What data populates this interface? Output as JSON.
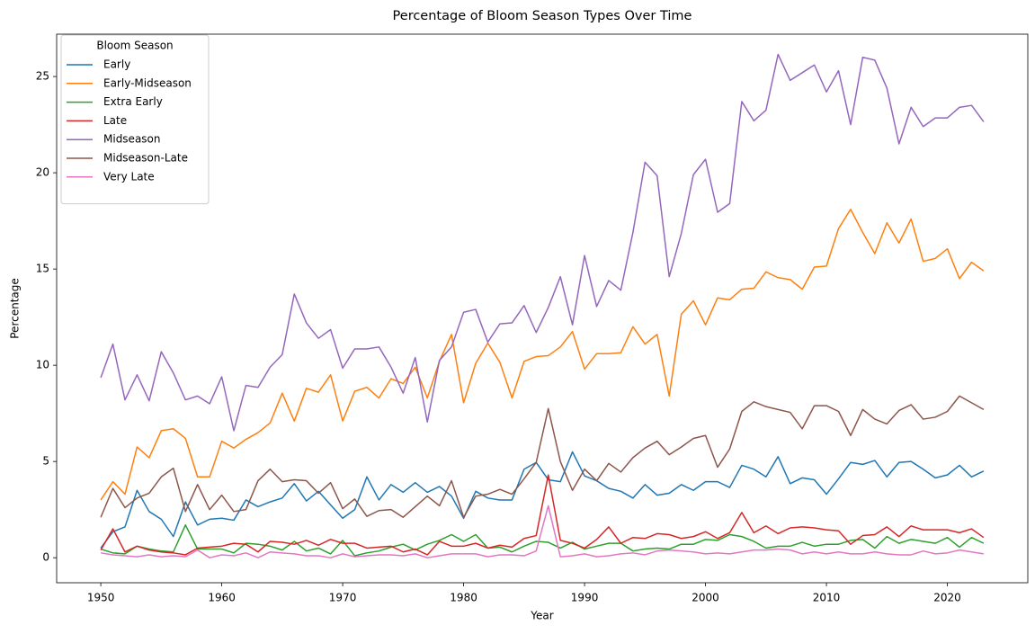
{
  "chart_data": {
    "type": "line",
    "title": "Percentage of Bloom Season Types Over Time",
    "x_label": "Year",
    "y_label": "Percentage",
    "legend_title": "Bloom Season",
    "legend_position": "upper-left",
    "grid": false,
    "xlim": [
      1946.35,
      2026.65
    ],
    "ylim": [
      -1.3,
      27.2
    ],
    "xticks": [
      1950,
      1960,
      1970,
      1980,
      1990,
      2000,
      2010,
      2020
    ],
    "yticks": [
      0,
      5,
      10,
      15,
      20,
      25
    ],
    "x": [
      1950,
      1951,
      1952,
      1953,
      1954,
      1955,
      1956,
      1957,
      1958,
      1959,
      1960,
      1961,
      1962,
      1963,
      1964,
      1965,
      1966,
      1967,
      1968,
      1969,
      1970,
      1971,
      1972,
      1973,
      1974,
      1975,
      1976,
      1977,
      1978,
      1979,
      1980,
      1981,
      1982,
      1983,
      1984,
      1985,
      1986,
      1987,
      1988,
      1989,
      1990,
      1991,
      1992,
      1993,
      1994,
      1995,
      1996,
      1997,
      1998,
      1999,
      2000,
      2001,
      2002,
      2003,
      2004,
      2005,
      2006,
      2007,
      2008,
      2009,
      2010,
      2011,
      2012,
      2013,
      2014,
      2015,
      2016,
      2017,
      2018,
      2019,
      2020,
      2021,
      2022,
      2023
    ],
    "series": [
      {
        "name": "Early",
        "color": "#1f77b4",
        "values": [
          0.5,
          1.35,
          1.6,
          3.5,
          2.4,
          2.0,
          1.1,
          2.9,
          1.7,
          2.0,
          2.05,
          1.95,
          3.0,
          2.65,
          2.9,
          3.1,
          3.85,
          2.95,
          3.45,
          2.75,
          2.05,
          2.5,
          4.2,
          3.0,
          3.8,
          3.4,
          3.9,
          3.4,
          3.7,
          3.2,
          2.05,
          3.45,
          3.1,
          3.0,
          3.0,
          4.6,
          4.95,
          4.05,
          3.95,
          5.5,
          4.25,
          4.0,
          3.6,
          3.45,
          3.1,
          3.8,
          3.25,
          3.35,
          3.8,
          3.5,
          3.95,
          3.95,
          3.65,
          4.8,
          4.6,
          4.2,
          5.25,
          3.85,
          4.15,
          4.05,
          3.3,
          4.1,
          4.95,
          4.85,
          5.05,
          4.2,
          4.95,
          5.0,
          4.6,
          4.15,
          4.3,
          4.8,
          4.2,
          4.5
        ]
      },
      {
        "name": "Early-Midseason",
        "color": "#ff7f0e",
        "values": [
          3.0,
          3.95,
          3.3,
          5.75,
          5.2,
          6.6,
          6.7,
          6.2,
          4.2,
          4.2,
          6.05,
          5.7,
          6.15,
          6.5,
          7.0,
          8.55,
          7.1,
          8.8,
          8.6,
          9.5,
          7.1,
          8.65,
          8.85,
          8.3,
          9.3,
          9.05,
          9.9,
          8.3,
          10.2,
          11.6,
          8.05,
          10.1,
          11.15,
          10.15,
          8.3,
          10.2,
          10.45,
          10.5,
          10.95,
          11.75,
          9.8,
          10.6,
          10.6,
          10.65,
          12.0,
          11.1,
          11.6,
          8.4,
          12.65,
          13.35,
          12.1,
          13.5,
          13.4,
          13.95,
          14.0,
          14.85,
          14.55,
          14.45,
          13.95,
          15.1,
          15.15,
          17.1,
          18.1,
          16.9,
          15.8,
          17.4,
          16.35,
          17.6,
          15.4,
          15.55,
          16.05,
          14.5,
          15.35,
          14.9
        ]
      },
      {
        "name": "Extra Early",
        "color": "#2ca02c",
        "values": [
          0.45,
          0.25,
          0.2,
          0.6,
          0.45,
          0.35,
          0.3,
          1.7,
          0.45,
          0.45,
          0.45,
          0.25,
          0.75,
          0.7,
          0.6,
          0.4,
          0.85,
          0.35,
          0.5,
          0.2,
          0.9,
          0.1,
          0.25,
          0.35,
          0.55,
          0.7,
          0.4,
          0.7,
          0.9,
          1.2,
          0.85,
          1.2,
          0.5,
          0.55,
          0.3,
          0.6,
          0.85,
          0.8,
          0.5,
          0.8,
          0.45,
          0.6,
          0.75,
          0.75,
          0.35,
          0.45,
          0.5,
          0.45,
          0.7,
          0.7,
          0.95,
          0.9,
          1.2,
          1.1,
          0.85,
          0.5,
          0.6,
          0.6,
          0.8,
          0.6,
          0.7,
          0.7,
          0.9,
          0.95,
          0.5,
          1.1,
          0.75,
          0.95,
          0.85,
          0.75,
          1.05,
          0.55,
          1.05,
          0.75
        ]
      },
      {
        "name": "Late",
        "color": "#d62728",
        "values": [
          0.4,
          1.5,
          0.3,
          0.6,
          0.4,
          0.3,
          0.25,
          0.15,
          0.5,
          0.55,
          0.6,
          0.75,
          0.7,
          0.3,
          0.85,
          0.8,
          0.7,
          0.9,
          0.65,
          0.95,
          0.75,
          0.75,
          0.5,
          0.55,
          0.6,
          0.3,
          0.45,
          0.15,
          0.85,
          0.6,
          0.6,
          0.75,
          0.5,
          0.65,
          0.55,
          1.0,
          1.15,
          4.3,
          0.9,
          0.75,
          0.5,
          0.95,
          1.6,
          0.75,
          1.05,
          1.0,
          1.25,
          1.2,
          1.0,
          1.1,
          1.35,
          1.0,
          1.3,
          2.35,
          1.3,
          1.65,
          1.25,
          1.55,
          1.6,
          1.55,
          1.45,
          1.4,
          0.7,
          1.15,
          1.2,
          1.6,
          1.1,
          1.65,
          1.45,
          1.45,
          1.45,
          1.3,
          1.5,
          1.05
        ]
      },
      {
        "name": "Midseason",
        "color": "#9467bd",
        "values": [
          9.35,
          11.1,
          8.2,
          9.5,
          8.15,
          10.7,
          9.6,
          8.2,
          8.4,
          8.0,
          9.4,
          6.6,
          8.95,
          8.85,
          9.9,
          10.55,
          13.7,
          12.2,
          11.4,
          11.85,
          9.85,
          10.85,
          10.85,
          10.95,
          9.9,
          8.55,
          10.4,
          7.05,
          10.25,
          10.95,
          12.75,
          12.9,
          11.2,
          12.15,
          12.2,
          13.1,
          11.7,
          13.0,
          14.6,
          12.1,
          15.7,
          13.05,
          14.4,
          13.9,
          16.9,
          20.55,
          19.85,
          14.6,
          16.85,
          19.9,
          20.7,
          17.95,
          18.4,
          23.7,
          22.7,
          23.25,
          26.15,
          24.8,
          25.2,
          25.6,
          24.2,
          25.3,
          22.5,
          26.0,
          25.85,
          24.4,
          21.5,
          23.4,
          22.4,
          22.85,
          22.85,
          23.4,
          23.5,
          22.65
        ]
      },
      {
        "name": "Midseason-Late",
        "color": "#8c564b",
        "values": [
          2.1,
          3.6,
          2.6,
          3.1,
          3.35,
          4.2,
          4.65,
          2.4,
          3.8,
          2.5,
          3.25,
          2.4,
          2.5,
          4.0,
          4.6,
          3.95,
          4.05,
          4.0,
          3.35,
          3.9,
          2.55,
          3.05,
          2.15,
          2.45,
          2.5,
          2.1,
          2.65,
          3.2,
          2.7,
          4.0,
          2.1,
          3.2,
          3.3,
          3.55,
          3.3,
          4.1,
          4.95,
          7.75,
          5.0,
          3.5,
          4.6,
          4.0,
          4.9,
          4.45,
          5.2,
          5.7,
          6.05,
          5.35,
          5.75,
          6.2,
          6.35,
          4.7,
          5.65,
          7.6,
          8.1,
          7.85,
          7.7,
          7.55,
          6.7,
          7.9,
          7.9,
          7.6,
          6.35,
          7.7,
          7.2,
          6.95,
          7.65,
          7.95,
          7.2,
          7.3,
          7.6,
          8.4,
          8.05,
          7.7
        ]
      },
      {
        "name": "Very Late",
        "color": "#e377c2",
        "values": [
          0.25,
          0.15,
          0.1,
          0.05,
          0.15,
          0.05,
          0.1,
          0.05,
          0.4,
          0.0,
          0.15,
          0.1,
          0.25,
          0.0,
          0.3,
          0.25,
          0.2,
          0.1,
          0.1,
          0.0,
          0.2,
          0.05,
          0.1,
          0.15,
          0.15,
          0.1,
          0.2,
          0.0,
          0.1,
          0.2,
          0.2,
          0.2,
          0.05,
          0.15,
          0.15,
          0.1,
          0.35,
          2.7,
          0.05,
          0.1,
          0.2,
          0.05,
          0.1,
          0.2,
          0.25,
          0.15,
          0.35,
          0.4,
          0.35,
          0.3,
          0.2,
          0.25,
          0.2,
          0.3,
          0.4,
          0.4,
          0.45,
          0.4,
          0.2,
          0.3,
          0.2,
          0.3,
          0.2,
          0.2,
          0.3,
          0.2,
          0.15,
          0.15,
          0.35,
          0.2,
          0.25,
          0.4,
          0.3,
          0.2
        ]
      }
    ]
  }
}
